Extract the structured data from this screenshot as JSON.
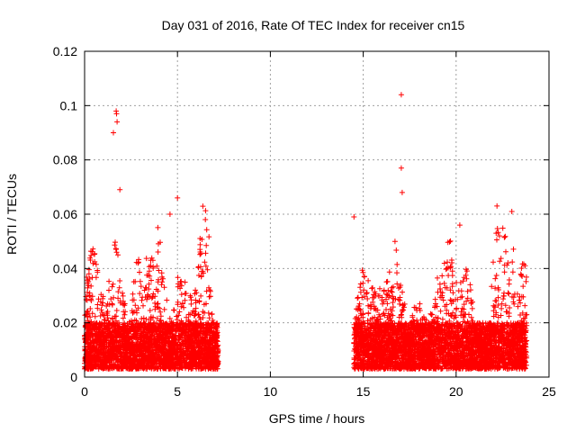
{
  "chart_data": {
    "type": "scatter",
    "title": "Day 031 of 2016, Rate Of TEC Index for receiver cn15",
    "xlabel": "GPS time / hours",
    "ylabel": "ROTI / TECUs",
    "xlim": [
      0,
      25
    ],
    "ylim": [
      0,
      0.12
    ],
    "x_ticks": [
      "0",
      "5",
      "10",
      "15",
      "20",
      "25"
    ],
    "y_ticks": [
      "0",
      "0.02",
      "0.04",
      "0.06",
      "0.08",
      "0.1",
      "0.12"
    ],
    "x_tick_values": [
      0,
      5,
      10,
      15,
      20,
      25
    ],
    "y_tick_values": [
      0,
      0.02,
      0.04,
      0.06,
      0.08,
      0.1,
      0.12
    ],
    "grid": true,
    "marker": "+",
    "color": "#ff0000",
    "series": [
      {
        "name": "ROTI",
        "description": "dense cloud of ROTI samples in two observation windows",
        "segments": [
          [
            0.0,
            7.2
          ],
          [
            14.5,
            23.8
          ]
        ],
        "notable_points": [
          {
            "x": 1.7,
            "y": 0.098
          },
          {
            "x": 1.72,
            "y": 0.097
          },
          {
            "x": 1.75,
            "y": 0.094
          },
          {
            "x": 1.55,
            "y": 0.09
          },
          {
            "x": 17.05,
            "y": 0.104
          },
          {
            "x": 17.05,
            "y": 0.077
          },
          {
            "x": 17.1,
            "y": 0.068
          },
          {
            "x": 20.2,
            "y": 0.056
          },
          {
            "x": 22.2,
            "y": 0.063
          },
          {
            "x": 5.0,
            "y": 0.066
          },
          {
            "x": 1.9,
            "y": 0.069
          },
          {
            "x": 4.6,
            "y": 0.06
          },
          {
            "x": 6.5,
            "y": 0.058
          },
          {
            "x": 14.5,
            "y": 0.059
          },
          {
            "x": 23.0,
            "y": 0.061
          }
        ]
      }
    ]
  }
}
